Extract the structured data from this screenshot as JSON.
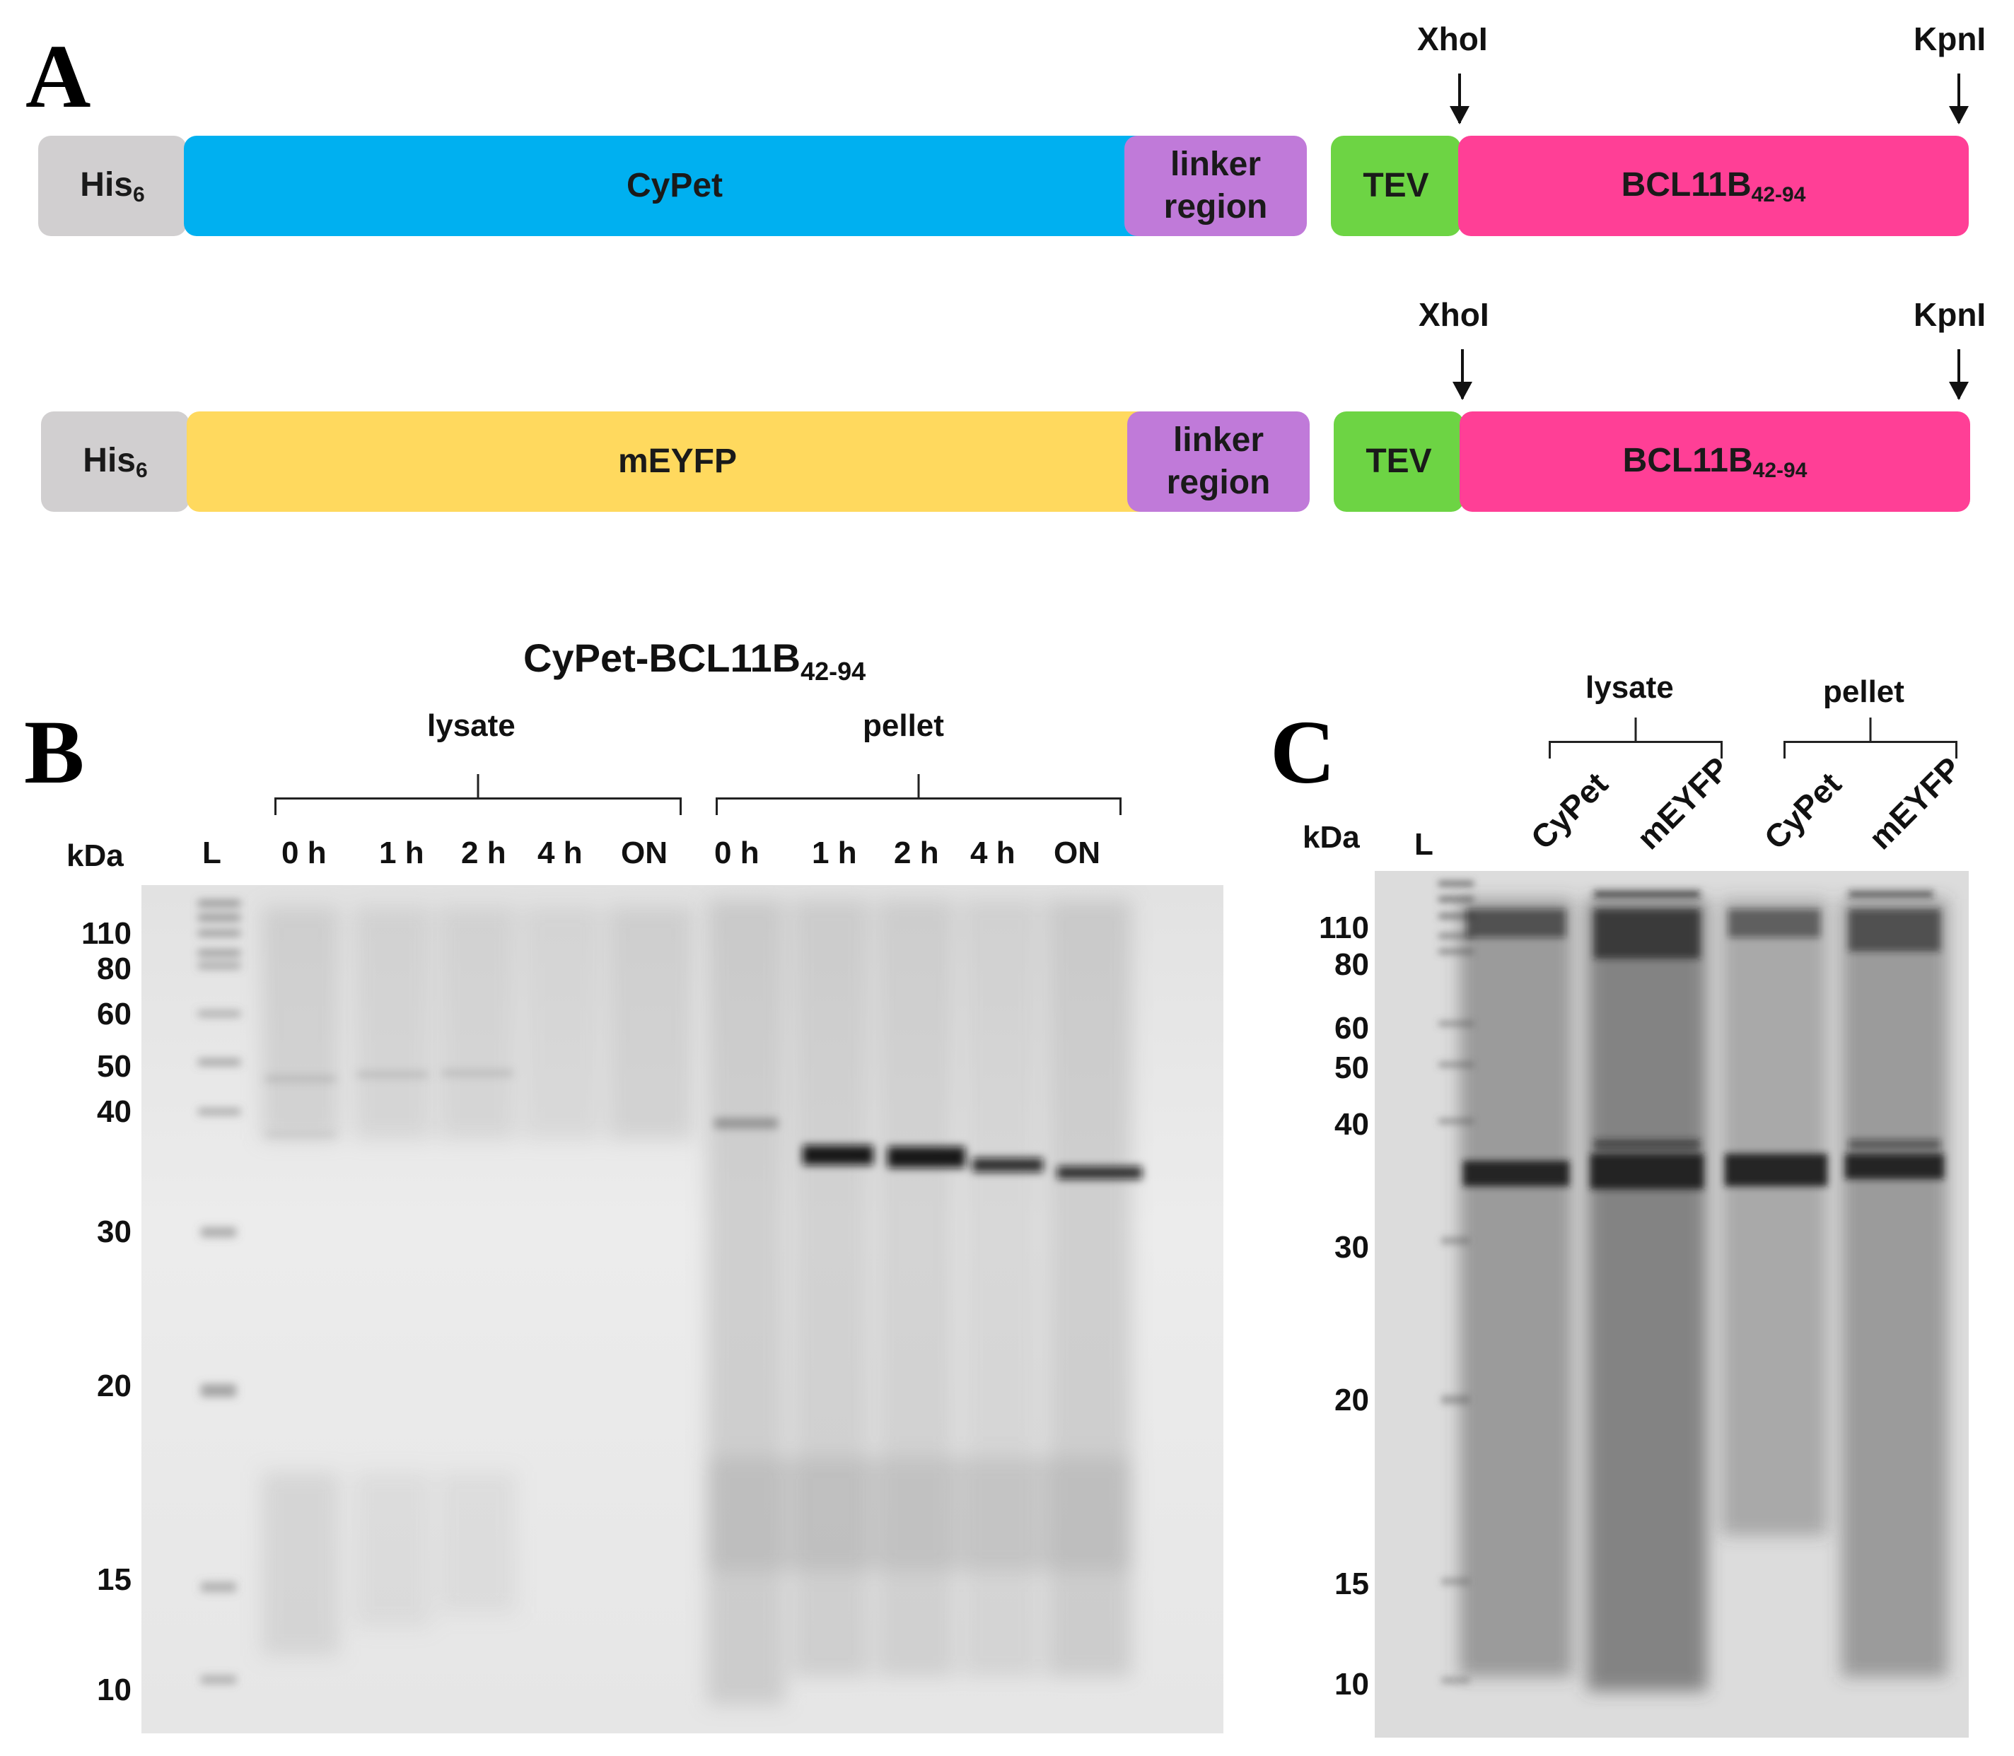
{
  "panels": {
    "a": "A",
    "b": "B",
    "c": "C"
  },
  "constructs": [
    {
      "segments": [
        {
          "key": "his",
          "label": "His",
          "sub": "6",
          "color": "#d1cfd0"
        },
        {
          "key": "fp",
          "label": "CyPet",
          "sub": "",
          "color": "#00b0f0"
        },
        {
          "key": "linker",
          "label": "linker",
          "label2": "region",
          "color": "#c07ad9"
        },
        {
          "key": "tev",
          "label": "TEV",
          "sub": "",
          "color": "#6dd444"
        },
        {
          "key": "bcl",
          "label": "BCL11B",
          "sub": "42-94",
          "color": "#ff3f96"
        }
      ],
      "sites": [
        "XhoI",
        "KpnI"
      ]
    },
    {
      "segments": [
        {
          "key": "his",
          "label": "His",
          "sub": "6",
          "color": "#d1cfd0"
        },
        {
          "key": "fp",
          "label": "mEYFP",
          "sub": "",
          "color": "#ffd95e"
        },
        {
          "key": "linker",
          "label": "linker",
          "label2": "region",
          "color": "#c07ad9"
        },
        {
          "key": "tev",
          "label": "TEV",
          "sub": "",
          "color": "#6dd444"
        },
        {
          "key": "bcl",
          "label": "BCL11B",
          "sub": "42-94",
          "color": "#ff3f96"
        }
      ],
      "sites": [
        "XhoI",
        "KpnI"
      ]
    }
  ],
  "gel_b": {
    "title": "CyPet-BCL11B",
    "title_sub": "42-94",
    "unit": "kDa",
    "ladder_label": "L",
    "groups": [
      "lysate",
      "pellet"
    ],
    "lanes": [
      "0 h",
      "1 h",
      "2 h",
      "4 h",
      "ON",
      "0 h",
      "1 h",
      "2 h",
      "4 h",
      "ON"
    ],
    "markers": [
      "110",
      "80",
      "60",
      "50",
      "40",
      "30",
      "20",
      "15",
      "10"
    ]
  },
  "gel_c": {
    "unit": "kDa",
    "ladder_label": "L",
    "groups": [
      "lysate",
      "pellet"
    ],
    "lanes": [
      "CyPet",
      "mEYFP",
      "CyPet",
      "mEYFP"
    ],
    "markers": [
      "110",
      "80",
      "60",
      "50",
      "40",
      "30",
      "20",
      "15",
      "10"
    ]
  }
}
